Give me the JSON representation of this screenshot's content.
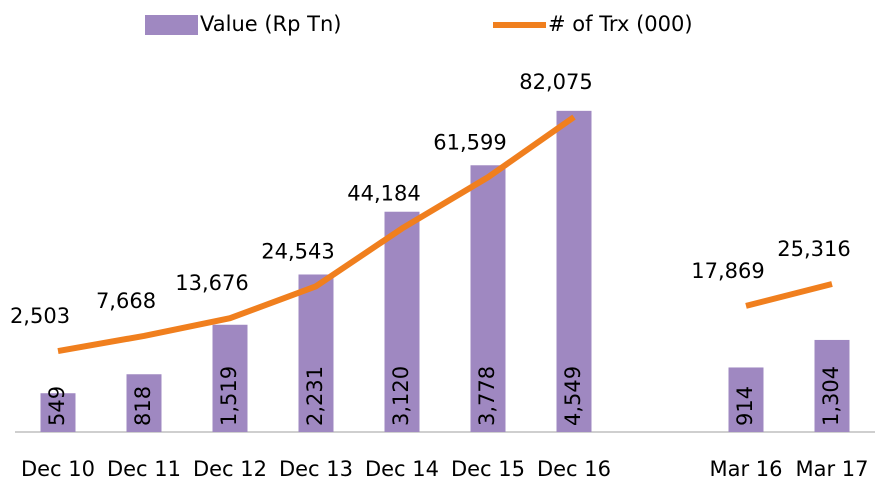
{
  "chart_data": {
    "type": "combo",
    "categories": [
      "Dec 10",
      "Dec 11",
      "Dec 12",
      "Dec 13",
      "Dec 14",
      "Dec 15",
      "Dec 16",
      null,
      "Mar 16",
      "Mar 17"
    ],
    "series": [
      {
        "name": "Value (Rp Tn)",
        "type": "bar",
        "color": "#9f88c1",
        "values": [
          549,
          818,
          1519,
          2231,
          3120,
          3778,
          4549,
          null,
          914,
          1304
        ],
        "value_labels": [
          "549",
          "818",
          "1,519",
          "2,231",
          "3,120",
          "3,778",
          "4,549",
          null,
          "914",
          "1,304"
        ]
      },
      {
        "name": "# of Trx (000)",
        "type": "line",
        "axis": "y2",
        "color": "#f07f1e",
        "values": [
          2503,
          7668,
          13676,
          24543,
          44184,
          61599,
          82075,
          null,
          17869,
          25316
        ],
        "value_labels": [
          "2,503",
          "7,668",
          "13,676",
          "24,543",
          "44,184",
          "61,599",
          "82,075",
          null,
          "17,869",
          "25,316"
        ]
      }
    ],
    "ylim": [
      0,
      5000
    ],
    "y2lim": [
      -25000,
      95000
    ],
    "legend": "top"
  }
}
